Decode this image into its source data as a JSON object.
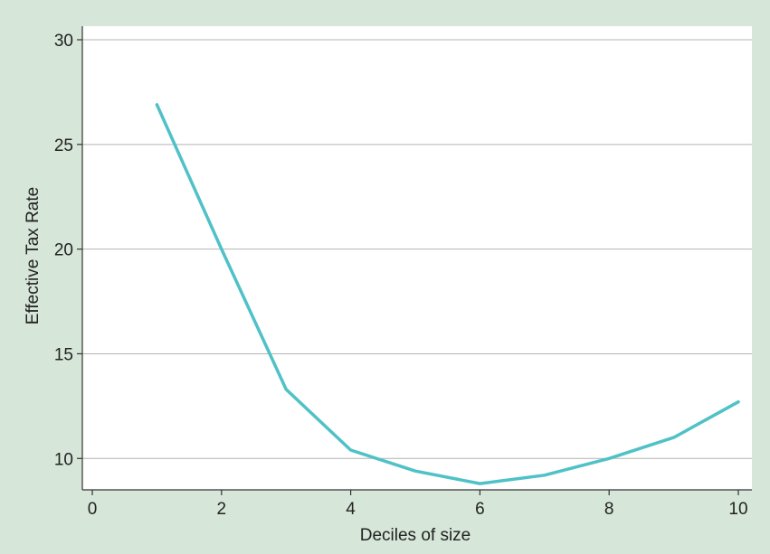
{
  "chart_data": {
    "type": "line",
    "xlabel": "Deciles of size",
    "ylabel": "Effective Tax Rate",
    "xlim": [
      0,
      10
    ],
    "ylim": [
      8.5,
      30
    ],
    "x_ticks": [
      0,
      2,
      4,
      6,
      8,
      10
    ],
    "y_ticks": [
      10,
      15,
      20,
      25,
      30
    ],
    "grid": "horizontal",
    "series": [
      {
        "x": [
          1,
          2,
          3,
          4,
          5,
          6,
          7,
          8,
          9,
          10
        ],
        "values": [
          26.9,
          20.0,
          13.3,
          10.4,
          9.4,
          8.8,
          9.2,
          10.0,
          11.0,
          12.7
        ],
        "color": "#4fc1c7"
      }
    ],
    "colors": {
      "background": "#d6e6d8",
      "plot_background": "#ffffff",
      "grid": "#b4b4b4",
      "axis": "#333333",
      "line": "#4fc1c7"
    }
  }
}
